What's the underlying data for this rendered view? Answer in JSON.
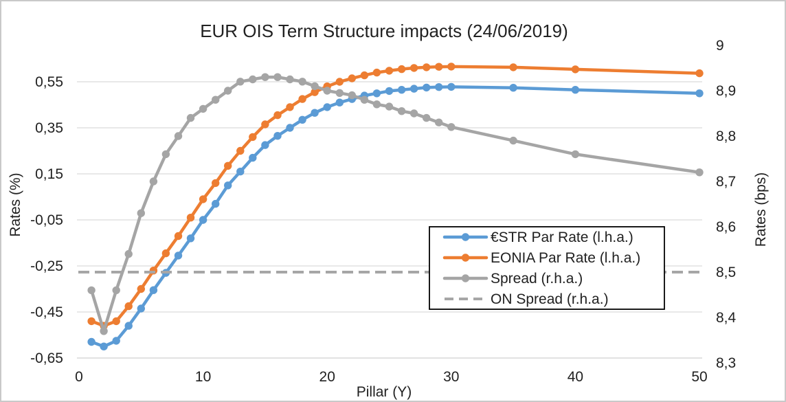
{
  "chart_data": {
    "type": "line",
    "title": "EUR OIS Term Structure impacts (24/06/2019)",
    "x_axis": {
      "label": "Pillar (Y)",
      "tick_labels": [
        "0",
        "10",
        "20",
        "30",
        "40",
        "50"
      ],
      "tick_values": [
        0,
        10,
        20,
        30,
        40,
        50
      ],
      "range": [
        0,
        50
      ]
    },
    "left_axis": {
      "label": "Rates (%)",
      "tick_labels": [
        "0,55",
        "0,35",
        "0,15",
        "-0,05",
        "-0,25",
        "-0,45",
        "-0,65"
      ],
      "tick_values": [
        0.55,
        0.35,
        0.15,
        -0.05,
        -0.25,
        -0.45,
        -0.65
      ],
      "range": [
        -0.65,
        0.75
      ],
      "grid": true
    },
    "right_axis": {
      "label": "Rates (bps)",
      "tick_labels": [
        "9",
        "8,9",
        "8,8",
        "8,7",
        "8,6",
        "8,5",
        "8,4",
        "8,3"
      ],
      "tick_values": [
        9.0,
        8.9,
        8.8,
        8.7,
        8.6,
        8.5,
        8.4,
        8.3
      ],
      "range": [
        8.3,
        9.0
      ]
    },
    "x": [
      1,
      2,
      3,
      4,
      5,
      6,
      7,
      8,
      9,
      10,
      11,
      12,
      13,
      14,
      15,
      16,
      17,
      18,
      19,
      20,
      21,
      22,
      23,
      24,
      25,
      26,
      27,
      28,
      29,
      30,
      35,
      40,
      50
    ],
    "series": [
      {
        "name": "€STR Par Rate (l.h.a.)",
        "axis": "left",
        "color": "#5B9BD5",
        "line": "solid",
        "markers": true,
        "values": [
          -0.58,
          -0.6,
          -0.575,
          -0.51,
          -0.435,
          -0.355,
          -0.28,
          -0.205,
          -0.13,
          -0.05,
          0.02,
          0.1,
          0.16,
          0.22,
          0.275,
          0.315,
          0.35,
          0.385,
          0.415,
          0.44,
          0.46,
          0.475,
          0.49,
          0.5,
          0.51,
          0.515,
          0.52,
          0.525,
          0.527,
          0.528,
          0.524,
          0.515,
          0.5
        ]
      },
      {
        "name": "EONIA Par Rate (l.h.a.)",
        "axis": "left",
        "color": "#ED7D31",
        "line": "solid",
        "markers": true,
        "values": [
          -0.49,
          -0.51,
          -0.49,
          -0.425,
          -0.35,
          -0.27,
          -0.195,
          -0.12,
          -0.04,
          0.04,
          0.11,
          0.185,
          0.25,
          0.31,
          0.365,
          0.405,
          0.44,
          0.475,
          0.505,
          0.53,
          0.55,
          0.565,
          0.578,
          0.59,
          0.598,
          0.605,
          0.61,
          0.613,
          0.615,
          0.616,
          0.613,
          0.604,
          0.587
        ]
      },
      {
        "name": "Spread (r.h.a.)",
        "axis": "right",
        "color": "#A5A5A5",
        "line": "solid",
        "markers": true,
        "values": [
          8.46,
          8.37,
          8.46,
          8.54,
          8.63,
          8.7,
          8.76,
          8.8,
          8.84,
          8.86,
          8.88,
          8.9,
          8.92,
          8.925,
          8.93,
          8.93,
          8.925,
          8.92,
          8.91,
          8.9,
          8.895,
          8.89,
          8.88,
          8.87,
          8.865,
          8.855,
          8.85,
          8.84,
          8.83,
          8.82,
          8.79,
          8.76,
          8.72
        ]
      },
      {
        "name": "ON Spread (r.h.a.)",
        "axis": "right",
        "color": "#A6A6A6",
        "line": "dashed",
        "markers": false,
        "values": [
          8.5,
          8.5,
          8.5,
          8.5,
          8.5,
          8.5,
          8.5,
          8.5,
          8.5,
          8.5,
          8.5,
          8.5,
          8.5,
          8.5,
          8.5,
          8.5,
          8.5,
          8.5,
          8.5,
          8.5,
          8.5,
          8.5,
          8.5,
          8.5,
          8.5,
          8.5,
          8.5,
          8.5,
          8.5,
          8.5,
          8.5,
          8.5,
          8.5
        ]
      }
    ],
    "legend": {
      "position": "inside-right",
      "background": "#ffffff",
      "border_color": "#000000"
    },
    "colors": {
      "gridline": "#d9d9d9",
      "axis_line": "#d9d9d9",
      "text": "#212121"
    }
  }
}
